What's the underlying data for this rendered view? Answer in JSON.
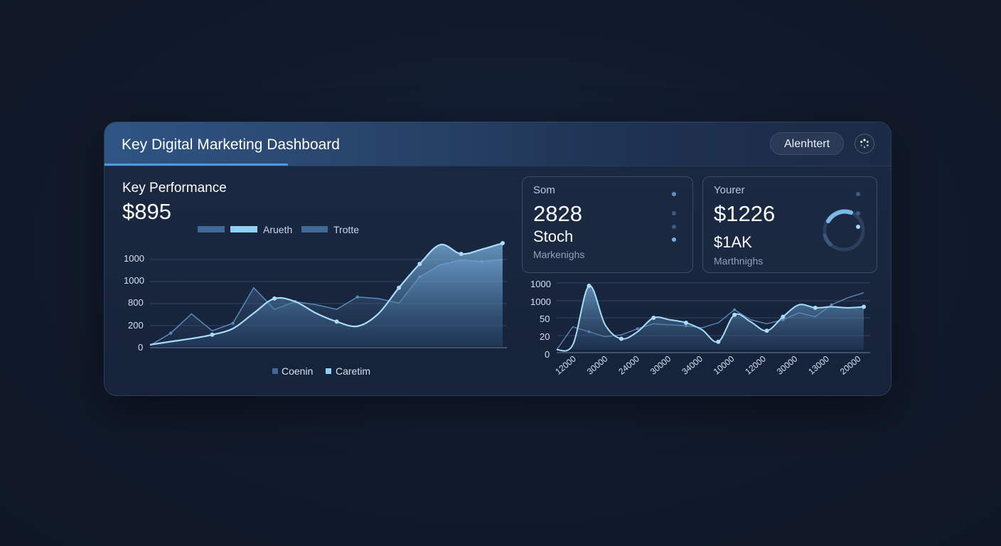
{
  "header": {
    "title": "Key Digital Marketing Dashboard",
    "alert_button": "Alenhtert",
    "settings_icon": "loader-icon"
  },
  "kpi": {
    "label": "Key Performance",
    "value": "$895"
  },
  "cards": [
    {
      "label": "Som",
      "big": "2828",
      "mid": "Stoch",
      "small": "Markenighs"
    },
    {
      "label": "Yourer",
      "big": "$1226",
      "mid": "$1AK",
      "small": "Marthnighs"
    }
  ],
  "colors": {
    "accent": "#4f9be0",
    "light_series": "#8fd0f5",
    "dark_series": "#4d7bae",
    "panel": "#16233a"
  },
  "chart_data": [
    {
      "type": "area",
      "title": "",
      "legend_top": [
        "Arueth",
        "Trotte"
      ],
      "legend_bottom": [
        "Coenin",
        "Caretim"
      ],
      "y_tick_labels": [
        "0",
        "200",
        "800",
        "1000",
        "1000"
      ],
      "series": [
        {
          "name": "Caretim",
          "x": [
            0,
            1,
            2,
            3,
            4,
            5,
            6,
            7,
            8,
            9,
            10,
            11,
            12,
            13,
            14,
            15,
            16,
            17
          ],
          "values": [
            20,
            60,
            100,
            150,
            230,
            430,
            620,
            580,
            430,
            320,
            260,
            420,
            760,
            1070,
            1320,
            1200,
            1260,
            1340
          ]
        },
        {
          "name": "Coenin",
          "x": [
            0,
            1,
            2,
            3,
            4,
            5,
            6,
            7,
            8,
            9,
            10,
            11,
            12,
            13,
            14,
            15,
            16,
            17
          ],
          "values": [
            10,
            170,
            420,
            200,
            300,
            760,
            480,
            580,
            540,
            480,
            640,
            620,
            560,
            900,
            1060,
            1120,
            1100,
            1130
          ]
        }
      ]
    },
    {
      "type": "area",
      "title": "",
      "y_tick_labels": [
        "0",
        "20",
        "50",
        "1000",
        "1000"
      ],
      "x_tick_labels": [
        "12000",
        "30000",
        "24000",
        "30000",
        "34000",
        "10000",
        "12000",
        "30000",
        "13000",
        "20000"
      ],
      "series": [
        {
          "name": "",
          "x": [
            0,
            1,
            2,
            3,
            4,
            5,
            6,
            7,
            8,
            9,
            10,
            11,
            12,
            13,
            14,
            15,
            16,
            17,
            18,
            19
          ],
          "values": [
            0,
            50,
            640,
            250,
            110,
            180,
            320,
            300,
            270,
            200,
            80,
            350,
            280,
            190,
            330,
            450,
            420,
            430,
            420,
            430
          ]
        },
        {
          "name": "",
          "x": [
            0,
            1,
            2,
            3,
            4,
            5,
            6,
            7,
            8,
            9,
            10,
            11,
            12,
            13,
            14,
            15,
            16,
            17,
            18,
            19
          ],
          "values": [
            0,
            230,
            180,
            130,
            150,
            210,
            260,
            250,
            240,
            220,
            270,
            400,
            300,
            260,
            300,
            370,
            330,
            450,
            520,
            570
          ]
        }
      ]
    }
  ]
}
